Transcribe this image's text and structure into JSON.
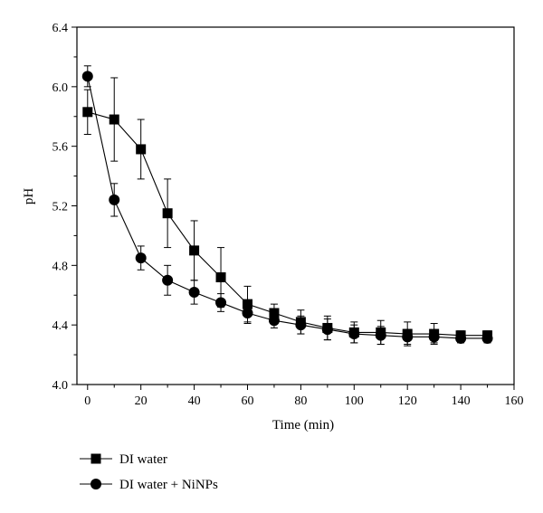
{
  "chart_data": {
    "type": "line",
    "title": "",
    "xlabel": "Time (min)",
    "ylabel": "pH",
    "xlim": [
      -4,
      160
    ],
    "ylim": [
      4.0,
      6.4
    ],
    "xticks": [
      0,
      20,
      40,
      60,
      80,
      100,
      120,
      140,
      160
    ],
    "yticks": [
      4.0,
      4.4,
      4.8,
      5.2,
      5.6,
      6.0,
      6.4
    ],
    "ytick_labels": [
      "4.0",
      "4.4",
      "4.8",
      "5.2",
      "5.6",
      "6.0",
      "6.4"
    ],
    "grid": false,
    "legend_position": "bottom-left, outside plot",
    "x": [
      0,
      10,
      20,
      30,
      40,
      50,
      60,
      70,
      80,
      90,
      100,
      110,
      120,
      130,
      140,
      150
    ],
    "series": [
      {
        "name": "DI water",
        "marker": "square",
        "values": [
          5.83,
          5.78,
          5.58,
          5.15,
          4.9,
          4.72,
          4.54,
          4.48,
          4.42,
          4.38,
          4.35,
          4.35,
          4.34,
          4.34,
          4.33,
          4.33
        ],
        "errors": [
          0.15,
          0.28,
          0.2,
          0.23,
          0.2,
          0.2,
          0.12,
          0.06,
          0.08,
          0.08,
          0.07,
          0.08,
          0.08,
          0.07,
          0.03,
          0.03
        ]
      },
      {
        "name": "DI water + NiNPs",
        "marker": "circle",
        "values": [
          6.07,
          5.24,
          4.85,
          4.7,
          4.62,
          4.55,
          4.48,
          4.43,
          4.4,
          4.37,
          4.34,
          4.33,
          4.32,
          4.32,
          4.31,
          4.31
        ],
        "errors": [
          0.07,
          0.11,
          0.08,
          0.1,
          0.08,
          0.06,
          0.07,
          0.05,
          0.06,
          0.07,
          0.06,
          0.06,
          0.05,
          0.04,
          0.03,
          0.03
        ]
      }
    ]
  }
}
